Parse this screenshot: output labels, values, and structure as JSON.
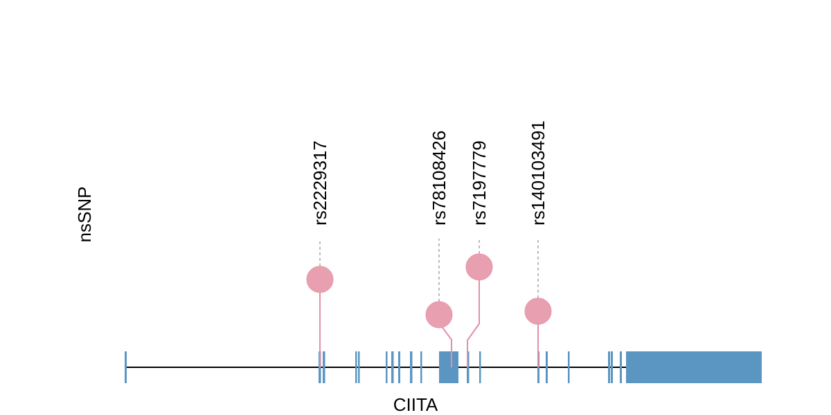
{
  "track_label": "nsSNP",
  "gene_name": "CIITA",
  "colors": {
    "exon": "#5b96c2",
    "snp": "#e89fb0",
    "stem": "#e48fa5",
    "guide": "#bbbbbb",
    "intron": "#000000"
  },
  "chart_data": {
    "type": "lollipop",
    "gene": "CIITA",
    "track": "nsSNP",
    "snps": [
      {
        "id": "rs2229317"
      },
      {
        "id": "rs78108426"
      },
      {
        "id": "rs7197779"
      },
      {
        "id": "rs140103491"
      }
    ]
  }
}
